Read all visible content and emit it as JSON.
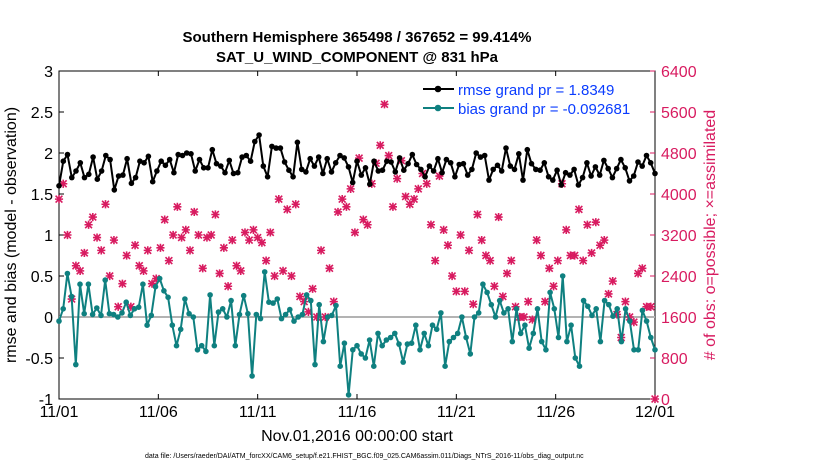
{
  "chart_data": {
    "type": "line",
    "title": "Southern Hemisphere 365498 / 367652 = 99.414%",
    "subtitle": "SAT_U_WIND_COMPONENT @ 831 hPa",
    "xlabel": "Nov.01,2016 00:00:00 start",
    "ylabel_left": "rmse and bias (model - observation)",
    "ylabel_right": "# of obs: o=possible; ×=assimilated",
    "x_tick_labels": [
      "11/01",
      "11/06",
      "11/11",
      "11/16",
      "11/21",
      "11/26",
      "12/01"
    ],
    "x_tick_values": [
      0,
      5,
      10,
      15,
      20,
      25,
      30
    ],
    "xlim": [
      0,
      30
    ],
    "ylim_left": [
      -1,
      3
    ],
    "y_ticks_left": [
      "-1",
      "-0.5",
      "0",
      "0.5",
      "1",
      "1.5",
      "2",
      "2.5",
      "3"
    ],
    "ylim_right": [
      0,
      6400
    ],
    "y_ticks_right": [
      "0",
      "800",
      "1600",
      "2400",
      "3200",
      "4000",
      "4800",
      "5600",
      "6400"
    ],
    "legend": {
      "rmse": "rmse grand pr = 1.8349",
      "bias": "bias grand pr = -0.092681"
    },
    "colors": {
      "rmse": "#000000",
      "bias": "#0f8080",
      "obs": "#d81b60",
      "zero": "#b3b3b3"
    },
    "series": [
      {
        "name": "rmse",
        "axis": "left",
        "values": [
          1.6,
          1.9,
          1.98,
          1.7,
          1.78,
          1.88,
          1.7,
          1.74,
          1.95,
          1.68,
          1.78,
          1.97,
          1.92,
          1.55,
          1.72,
          1.73,
          1.93,
          1.63,
          1.7,
          1.9,
          1.88,
          1.96,
          1.65,
          1.78,
          1.9,
          1.85,
          1.92,
          1.76,
          1.98,
          1.97,
          2.0,
          1.99,
          1.78,
          1.92,
          1.82,
          1.82,
          2.04,
          1.87,
          1.84,
          1.76,
          1.91,
          1.75,
          1.76,
          1.95,
          1.97,
          1.9,
          2.14,
          2.22,
          1.84,
          1.71,
          2.08,
          2.06,
          2.06,
          1.89,
          1.79,
          1.71,
          2.13,
          1.8,
          1.77,
          1.93,
          1.84,
          1.95,
          1.75,
          1.93,
          1.77,
          1.88,
          1.97,
          1.94,
          1.83,
          1.64,
          1.9,
          1.73,
          1.82,
          1.62,
          1.9,
          1.78,
          1.79,
          1.9,
          1.89,
          1.77,
          1.94,
          1.79,
          1.87,
          1.98,
          1.86,
          1.8,
          1.71,
          1.84,
          1.78,
          1.93,
          1.76,
          1.92,
          1.88,
          1.71,
          1.86,
          1.87,
          1.73,
          1.8,
          2.0,
          1.95,
          1.97,
          1.67,
          1.8,
          1.85,
          1.78,
          2.06,
          1.84,
          1.8,
          1.99,
          1.67,
          2.04,
          1.87,
          1.8,
          1.79,
          1.88,
          1.71,
          1.67,
          1.79,
          1.61,
          1.76,
          1.73,
          1.8,
          1.61,
          1.7,
          1.88,
          1.72,
          1.83,
          1.73,
          1.91,
          1.81,
          1.7,
          1.81,
          1.92,
          1.82,
          1.66,
          1.72,
          1.89,
          1.84,
          1.97,
          1.88,
          1.75
        ]
      },
      {
        "name": "bias",
        "axis": "left",
        "values": [
          -0.05,
          0.1,
          0.53,
          0.25,
          -0.58,
          0.4,
          0.04,
          0.4,
          0.03,
          0.11,
          0.02,
          0.45,
          0.04,
          0.03,
          0.0,
          0.05,
          0.18,
          0.02,
          0.1,
          0.12,
          0.4,
          -0.1,
          0.02,
          0.37,
          0.47,
          0.32,
          0.24,
          -0.1,
          -0.35,
          -0.15,
          0.22,
          0.04,
          0.0,
          -0.4,
          -0.35,
          -0.42,
          0.27,
          -0.35,
          0.06,
          0.1,
          0.0,
          0.2,
          -0.35,
          0.03,
          0.26,
          0.04,
          -0.72,
          0.03,
          -0.02,
          0.55,
          0.18,
          0.17,
          0.22,
          -0.02,
          0.03,
          0.09,
          -0.05,
          0.0,
          0.03,
          0.27,
          0.2,
          -0.58,
          0.15,
          -0.3,
          0.0,
          0.02,
          0.14,
          -0.6,
          -0.32,
          -0.95,
          -0.4,
          -0.35,
          -0.45,
          -0.5,
          -0.28,
          -0.6,
          -0.2,
          -0.35,
          -0.28,
          -0.25,
          -0.2,
          -0.33,
          -0.55,
          -0.33,
          -0.32,
          -0.1,
          -0.4,
          -0.2,
          -0.35,
          -0.1,
          -0.15,
          0.05,
          -0.6,
          -0.3,
          -0.25,
          -0.2,
          0.0,
          -0.25,
          -0.45,
          0.0,
          0.05,
          0.4,
          0.3,
          0.15,
          0.0,
          0.2,
          0.05,
          0.1,
          -0.3,
          0.1,
          -0.2,
          -0.1,
          -0.38,
          -0.2,
          0.1,
          -0.3,
          -0.4,
          0.3,
          0.1,
          -0.25,
          0.5,
          -0.3,
          -0.1,
          -0.5,
          -0.6,
          0.2,
          0.13,
          0.02,
          0.1,
          -0.3,
          0.2,
          0.15,
          0.01,
          0.1,
          -0.3,
          0.1,
          -0.05,
          -0.4,
          -0.4,
          0.08,
          -0.05,
          -0.25,
          -0.4
        ]
      },
      {
        "name": "obs assimilated",
        "axis": "right",
        "values": [
          3900,
          4200,
          3200,
          1950,
          2600,
          2500,
          2850,
          3400,
          3550,
          3150,
          2900,
          3800,
          2400,
          3100,
          1800,
          2250,
          2800,
          1800,
          3000,
          2600,
          2500,
          2900,
          2250,
          2350,
          2950,
          3500,
          2700,
          3200,
          3750,
          3150,
          3300,
          2900,
          3650,
          3200,
          2550,
          3150,
          3200,
          3600,
          2450,
          2950,
          2200,
          3100,
          2600,
          2500,
          3250,
          3100,
          3300,
          3150,
          3050,
          2700,
          3250,
          2400,
          3900,
          2500,
          3700,
          2400,
          3800,
          2000,
          1900,
          1700,
          2150,
          1600,
          2900,
          1600,
          2550,
          1900,
          3650,
          3900,
          3750,
          4100,
          3250,
          4700,
          3500,
          3400,
          4200,
          4600,
          4950,
          5750,
          4750,
          3750,
          4300,
          4650,
          3950,
          3800,
          3900,
          4100,
          4400,
          4200,
          3400,
          2700,
          4350,
          3300,
          3000,
          2400,
          2100,
          3200,
          2100,
          2900,
          1850,
          3600,
          3100,
          2800,
          2700,
          2200,
          3550,
          2000,
          2450,
          2700,
          1800,
          1600,
          1600,
          1900,
          1550,
          3100,
          2800,
          1900,
          2550,
          2200,
          2700,
          4200,
          3300,
          2800,
          2800,
          3700,
          2700,
          3400,
          2850,
          3450,
          3000,
          3100,
          2050,
          2300,
          1650,
          1200,
          1900,
          1600,
          1500,
          2450,
          2550,
          1800,
          1800,
          0
        ]
      }
    ]
  },
  "footer": {
    "data_file": "data file: /Users/raeder/DAI/ATM_forcXX/CAM6_setup/f.e21.FHIST_BGC.f09_025.CAM6assim.011/Diags_NTrS_2016-11/obs_diag_output.nc"
  }
}
